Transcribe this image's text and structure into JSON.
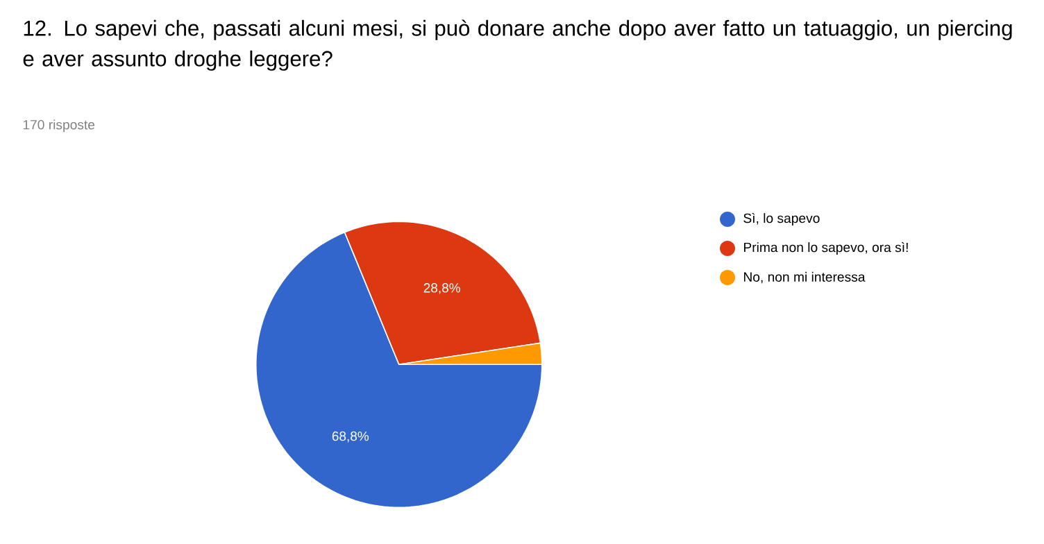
{
  "chart_data": {
    "type": "pie",
    "title": "12. Lo sapevi che, passati alcuni mesi, si può donare anche dopo aver fatto un tatuaggio, un piercing e aver assunto droghe leggere?",
    "subtitle": "170 risposte",
    "categories": [
      "Sì, lo sapevo",
      "Prima non lo sapevo, ora sì!",
      "No, non mi interessa"
    ],
    "values": [
      68.8,
      28.8,
      2.4
    ],
    "value_labels": [
      "68,8%",
      "28,8%",
      null
    ],
    "colors": [
      "#3366cc",
      "#dc3912",
      "#ff9900"
    ],
    "legend": "right"
  }
}
